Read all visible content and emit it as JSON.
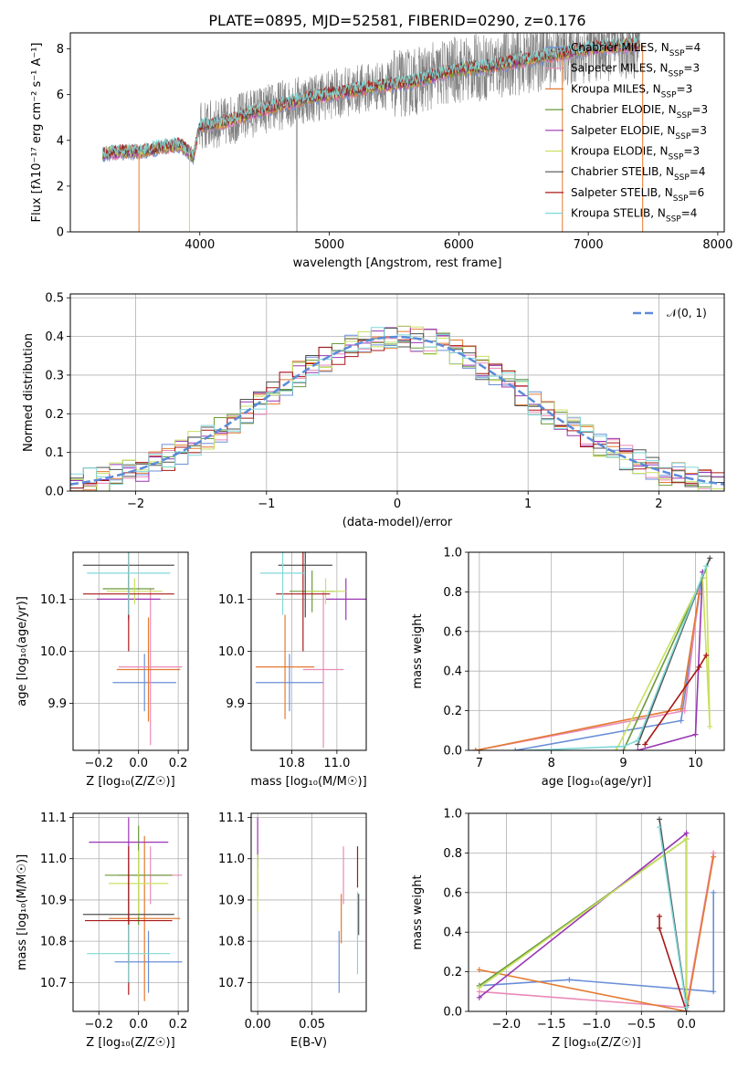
{
  "figure": {
    "title": "PLATE=0895, MJD=52581, FIBERID=0290, z=0.176"
  },
  "legend_labels": [
    "Chabrier MILES, N_SSP=4",
    "Salpeter MILES, N_SSP=3",
    "Kroupa MILES, N_SSP=3",
    "Chabrier ELODIE, N_SSP=3",
    "Salpeter ELODIE, N_SSP=3",
    "Kroupa ELODIE, N_SSP=3",
    "Chabrier STELIB, N_SSP=4",
    "Salpeter STELIB, N_SSP=6",
    "Kroupa STELIB, N_SSP=4"
  ],
  "colors": {
    "Chabrier MILES": "#6a8fd8",
    "Salpeter MILES": "#ea8ab8",
    "Kroupa MILES": "#e47a30",
    "Chabrier ELODIE": "#6a9a3a",
    "Salpeter ELODIE": "#9a36b4",
    "Kroupa ELODIE": "#c8e060",
    "Chabrier STELIB": "#505050",
    "Salpeter STELIB": "#a81818",
    "Kroupa STELIB": "#80d8d8",
    "data": "#7f7f7f",
    "normal": "#5b8bd8"
  },
  "chart_data": [
    {
      "id": "spectrum",
      "type": "line",
      "xlabel": "wavelength [Angstrom, rest frame]",
      "ylabel": "Flux [f_λ 10^-17 erg cm^-2 s^-1 A^-1]",
      "xlim": [
        3000,
        8050
      ],
      "ylim": [
        0,
        8.7
      ],
      "xticks": [
        4000,
        5000,
        6000,
        7000,
        8000
      ],
      "yticks": [
        0,
        2,
        4,
        6,
        8
      ],
      "continuum_x": [
        3250,
        3400,
        3550,
        3700,
        3850,
        3950,
        4000,
        4200,
        4400,
        4600,
        4800,
        5000,
        5200,
        5400,
        5600,
        5800,
        6000,
        6200,
        6400,
        6600,
        6800,
        7000,
        7200,
        7400
      ],
      "continuum_y": [
        3.4,
        3.5,
        3.5,
        3.7,
        3.8,
        3.3,
        4.6,
        4.8,
        5.2,
        5.5,
        5.8,
        6.0,
        6.2,
        6.4,
        6.5,
        6.8,
        7.1,
        7.2,
        7.4,
        7.6,
        7.8,
        8.0,
        8.1,
        8.2
      ],
      "data_x_range": [
        3250,
        7400
      ],
      "grid": false
    },
    {
      "id": "residuals",
      "type": "bar",
      "xlabel": "(data-model)/error",
      "ylabel": "Normed distribution",
      "xlim": [
        -2.5,
        2.5
      ],
      "ylim": [
        0,
        0.51
      ],
      "xticks": [
        -2,
        -1,
        0,
        1,
        2
      ],
      "yticks": [
        0.0,
        0.1,
        0.2,
        0.3,
        0.4,
        0.5
      ],
      "bin_width": 0.1,
      "x_start": -2.5,
      "reference": {
        "name": "N(0,1)",
        "type": "normal",
        "mean": 0,
        "sigma": 1
      },
      "legend": "top-right",
      "grid": true
    },
    {
      "id": "age_vs_Z",
      "type": "scatter",
      "xlabel": "Z [log10(Z/Z☉)]",
      "ylabel": "age [log10(age/yr)]",
      "xlim": [
        -0.33,
        0.25
      ],
      "ylim": [
        9.81,
        10.19
      ],
      "xticks": [
        -0.2,
        0.0,
        0.2
      ],
      "yticks": [
        9.9,
        10.0,
        10.1
      ],
      "points": [
        {
          "model": "Chabrier MILES",
          "x": 0.03,
          "xerr": 0.16,
          "y": 9.94,
          "yerr": 0.055
        },
        {
          "model": "Salpeter MILES",
          "x": 0.06,
          "xerr": 0.16,
          "y": 9.97,
          "yerr": 0.15
        },
        {
          "model": "Kroupa MILES",
          "x": 0.05,
          "xerr": 0.16,
          "y": 9.965,
          "yerr": 0.1
        },
        {
          "model": "Chabrier ELODIE",
          "x": -0.05,
          "xerr": 0.13,
          "y": 10.12,
          "yerr": 0.04
        },
        {
          "model": "Salpeter ELODIE",
          "x": -0.05,
          "xerr": 0.16,
          "y": 10.1,
          "yerr": 0.04
        },
        {
          "model": "Kroupa ELODIE",
          "x": -0.02,
          "xerr": 0.14,
          "y": 10.115,
          "yerr": 0.025
        },
        {
          "model": "Chabrier STELIB",
          "x": -0.05,
          "xerr": 0.23,
          "y": 10.165,
          "yerr": 0.1
        },
        {
          "model": "Salpeter STELIB",
          "x": -0.05,
          "xerr": 0.23,
          "y": 10.11,
          "yerr": 0.11
        },
        {
          "model": "Kroupa STELIB",
          "x": -0.05,
          "xerr": 0.21,
          "y": 10.15,
          "yerr": 0.08
        }
      ],
      "grid": true
    },
    {
      "id": "age_vs_mass",
      "type": "scatter",
      "xlabel": "mass [log10(M/M☉)]",
      "ylabel": "",
      "xlim": [
        10.62,
        11.13
      ],
      "ylim": [
        9.81,
        10.19
      ],
      "xticks": [
        10.8,
        11.0
      ],
      "yticks": [
        9.9,
        10.0,
        10.1
      ],
      "points": [
        {
          "model": "Chabrier MILES",
          "x": 10.79,
          "xerr": 0.15,
          "y": 9.94,
          "yerr": 0.055
        },
        {
          "model": "Salpeter MILES",
          "x": 10.94,
          "xerr": 0.09,
          "y": 9.965,
          "yerr": 0.15
        },
        {
          "model": "Kroupa MILES",
          "x": 10.77,
          "xerr": 0.13,
          "y": 9.97,
          "yerr": 0.1
        },
        {
          "model": "Chabrier ELODIE",
          "x": 10.89,
          "xerr": 0.1,
          "y": 10.115,
          "yerr": 0.04
        },
        {
          "model": "Salpeter ELODIE",
          "x": 11.04,
          "xerr": 0.09,
          "y": 10.1,
          "yerr": 0.04
        },
        {
          "model": "Kroupa ELODIE",
          "x": 10.95,
          "xerr": 0.09,
          "y": 10.115,
          "yerr": 0.025
        },
        {
          "model": "Chabrier STELIB",
          "x": 10.86,
          "xerr": 0.12,
          "y": 10.165,
          "yerr": 0.1
        },
        {
          "model": "Salpeter STELIB",
          "x": 10.85,
          "xerr": 0.12,
          "y": 10.11,
          "yerr": 0.11
        },
        {
          "model": "Kroupa STELIB",
          "x": 10.76,
          "xerr": 0.1,
          "y": 10.15,
          "yerr": 0.08
        }
      ],
      "grid": true
    },
    {
      "id": "mass_weight_vs_age",
      "type": "line",
      "xlabel": "age [log10(age/yr)]",
      "ylabel": "mass weight",
      "xlim": [
        6.85,
        10.4
      ],
      "ylim": [
        0,
        1.0
      ],
      "xticks": [
        7,
        8,
        9,
        10
      ],
      "yticks": [
        0.0,
        0.2,
        0.4,
        0.6,
        0.8,
        1.0
      ],
      "series": [
        {
          "model": "Chabrier MILES",
          "x": [
            7.5,
            9.8,
            10.1
          ],
          "y": [
            0.0,
            0.15,
            0.9
          ]
        },
        {
          "model": "Salpeter MILES",
          "x": [
            6.95,
            9.85,
            10.05
          ],
          "y": [
            0.0,
            0.2,
            0.8
          ]
        },
        {
          "model": "Kroupa MILES",
          "x": [
            6.95,
            9.8,
            10.05
          ],
          "y": [
            0.0,
            0.21,
            0.79
          ]
        },
        {
          "model": "Chabrier ELODIE",
          "x": [
            9.0,
            10.1
          ],
          "y": [
            0.0,
            0.87
          ]
        },
        {
          "model": "Salpeter ELODIE",
          "x": [
            9.2,
            10.0,
            10.1
          ],
          "y": [
            0.0,
            0.08,
            0.9
          ]
        },
        {
          "model": "Kroupa ELODIE",
          "x": [
            8.9,
            10.1,
            10.2,
            10.15
          ],
          "y": [
            0.0,
            0.87,
            0.12,
            0.93
          ]
        },
        {
          "model": "Chabrier STELIB",
          "x": [
            9.2,
            10.2
          ],
          "y": [
            0.03,
            0.97
          ]
        },
        {
          "model": "Salpeter STELIB",
          "x": [
            9.3,
            10.05,
            10.15
          ],
          "y": [
            0.03,
            0.42,
            0.48
          ]
        },
        {
          "model": "Kroupa STELIB",
          "x": [
            7.7,
            9.0,
            9.2,
            10.15
          ],
          "y": [
            0.0,
            0.02,
            0.05,
            0.93
          ]
        }
      ],
      "grid": true
    },
    {
      "id": "mass_vs_Z",
      "type": "scatter",
      "xlabel": "Z [log10(Z/Z☉)]",
      "ylabel": "mass [log10(M/M☉)]",
      "xlim": [
        -0.33,
        0.25
      ],
      "ylim": [
        10.63,
        11.11
      ],
      "xticks": [
        -0.2,
        0.0,
        0.2
      ],
      "yticks": [
        10.7,
        10.8,
        10.9,
        11.0,
        11.1
      ],
      "points": [
        {
          "model": "Chabrier MILES",
          "x": 0.05,
          "xerr": 0.17,
          "y": 10.75,
          "yerr": 0.075
        },
        {
          "model": "Salpeter MILES",
          "x": 0.06,
          "xerr": 0.16,
          "y": 10.96,
          "yerr": 0.07
        },
        {
          "model": "Kroupa MILES",
          "x": 0.03,
          "xerr": 0.18,
          "y": 10.855,
          "yerr": 0.2
        },
        {
          "model": "Chabrier ELODIE",
          "x": 0.0,
          "xerr": 0.17,
          "y": 10.96,
          "yerr": 0.12
        },
        {
          "model": "Salpeter ELODIE",
          "x": -0.05,
          "xerr": 0.2,
          "y": 11.04,
          "yerr": 0.06
        },
        {
          "model": "Kroupa ELODIE",
          "x": 0.0,
          "xerr": 0.15,
          "y": 10.94,
          "yerr": 0.08
        },
        {
          "model": "Chabrier STELIB",
          "x": -0.05,
          "xerr": 0.23,
          "y": 10.865,
          "yerr": 0.12
        },
        {
          "model": "Salpeter STELIB",
          "x": -0.05,
          "xerr": 0.22,
          "y": 10.85,
          "yerr": 0.18
        },
        {
          "model": "Kroupa STELIB",
          "x": -0.05,
          "xerr": 0.21,
          "y": 10.77,
          "yerr": 0.07
        }
      ],
      "grid": true
    },
    {
      "id": "mass_vs_ebv",
      "type": "scatter",
      "xlabel": "E(B-V)",
      "ylabel": "",
      "xlim": [
        -0.006,
        0.1
      ],
      "ylim": [
        10.63,
        11.11
      ],
      "xticks": [
        0.0,
        0.05
      ],
      "yticks": [
        10.7,
        10.8,
        10.9,
        11.0,
        11.1
      ],
      "points": [
        {
          "model": "Chabrier MILES",
          "x": 0.075,
          "y": 10.75,
          "yerr": 0.075
        },
        {
          "model": "Salpeter MILES",
          "x": 0.079,
          "y": 10.96,
          "yerr": 0.07
        },
        {
          "model": "Kroupa MILES",
          "x": 0.077,
          "y": 10.855,
          "yerr": 0.06
        },
        {
          "model": "Chabrier ELODIE",
          "x": 0.0,
          "y": 10.96,
          "yerr": 0.05
        },
        {
          "model": "Salpeter ELODIE",
          "x": 0.0,
          "y": 11.04,
          "yerr": 0.06
        },
        {
          "model": "Kroupa ELODIE",
          "x": 0.0,
          "y": 10.94,
          "yerr": 0.07
        },
        {
          "model": "Chabrier STELIB",
          "x": 0.093,
          "y": 10.865,
          "yerr": 0.05
        },
        {
          "model": "Salpeter STELIB",
          "x": 0.092,
          "y": 10.98,
          "yerr": 0.05
        },
        {
          "model": "Kroupa STELIB",
          "x": 0.092,
          "y": 10.82,
          "yerr": 0.1
        }
      ],
      "grid": true
    },
    {
      "id": "mass_weight_vs_Z",
      "type": "line",
      "xlabel": "Z [log10(Z/Z☉)]",
      "ylabel": "mass weight",
      "xlim": [
        -2.42,
        0.42
      ],
      "ylim": [
        0,
        1.0
      ],
      "xticks": [
        -2.0,
        -1.5,
        -1.0,
        -0.5,
        0.0
      ],
      "yticks": [
        0.0,
        0.2,
        0.4,
        0.6,
        0.8,
        1.0
      ],
      "series": [
        {
          "model": "Chabrier MILES",
          "x": [
            -2.3,
            -1.3,
            0.3,
            0.3
          ],
          "y": [
            0.13,
            0.16,
            0.1,
            0.6
          ]
        },
        {
          "model": "Salpeter MILES",
          "x": [
            -2.3,
            0.0,
            0.3
          ],
          "y": [
            0.1,
            0.02,
            0.8
          ]
        },
        {
          "model": "Kroupa MILES",
          "x": [
            -2.3,
            0.0,
            0.3
          ],
          "y": [
            0.21,
            0.0,
            0.78
          ]
        },
        {
          "model": "Chabrier ELODIE",
          "x": [
            -2.3,
            0.0,
            0.0
          ],
          "y": [
            0.13,
            0.87,
            0.0
          ]
        },
        {
          "model": "Salpeter ELODIE",
          "x": [
            -2.3,
            0.0,
            0.0
          ],
          "y": [
            0.07,
            0.9,
            0.03
          ]
        },
        {
          "model": "Kroupa ELODIE",
          "x": [
            -2.3,
            0.0,
            0.0
          ],
          "y": [
            0.12,
            0.87,
            0.0
          ]
        },
        {
          "model": "Chabrier STELIB",
          "x": [
            -0.3,
            0.0
          ],
          "y": [
            0.97,
            0.03
          ]
        },
        {
          "model": "Salpeter STELIB",
          "x": [
            -0.3,
            -0.3,
            0.0
          ],
          "y": [
            0.48,
            0.42,
            0.0
          ]
        },
        {
          "model": "Kroupa STELIB",
          "x": [
            -0.3,
            0.0,
            0.0
          ],
          "y": [
            0.93,
            0.02,
            0.05
          ]
        }
      ],
      "grid": true
    }
  ]
}
